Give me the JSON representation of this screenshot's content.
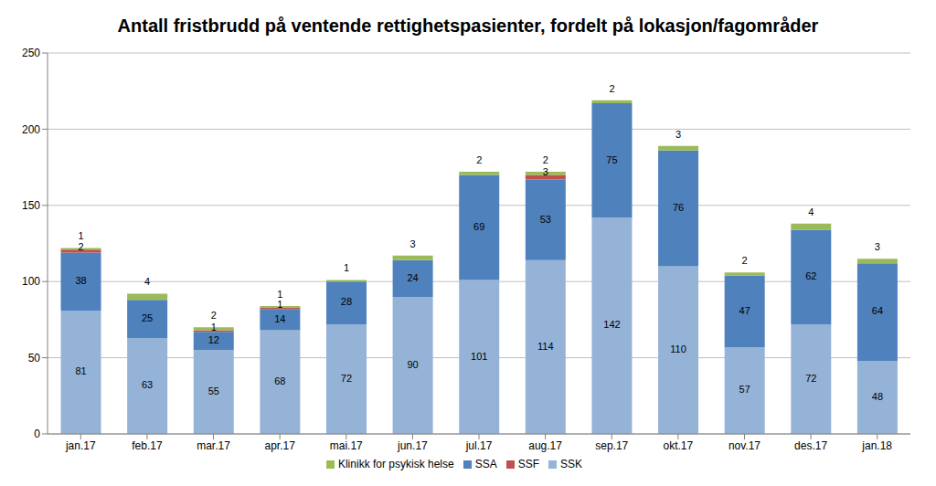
{
  "chart_data": {
    "type": "bar",
    "title": "Antall fristbrudd på ventende rettighetspasienter, fordelt på lokasjon/fagområder",
    "categories": [
      "jan.17",
      "feb.17",
      "mar.17",
      "apr.17",
      "mai.17",
      "jun.17",
      "jul.17",
      "aug.17",
      "sep.17",
      "okt.17",
      "nov.17",
      "des.17",
      "jan.18"
    ],
    "series": [
      {
        "name": "SSK",
        "color": "#95b3d7",
        "values": [
          81,
          63,
          55,
          68,
          72,
          90,
          101,
          114,
          142,
          110,
          57,
          72,
          48
        ]
      },
      {
        "name": "SSA",
        "color": "#4f81bd",
        "values": [
          38,
          25,
          12,
          14,
          28,
          24,
          69,
          53,
          75,
          76,
          47,
          62,
          64
        ]
      },
      {
        "name": "SSF",
        "color": "#c0504d",
        "values": [
          2,
          0,
          1,
          1,
          0,
          0,
          0,
          3,
          0,
          0,
          0,
          0,
          0
        ]
      },
      {
        "name": "Klinikk for psykisk helse",
        "color": "#9bbb59",
        "values": [
          1,
          4,
          2,
          1,
          1,
          3,
          2,
          2,
          2,
          3,
          2,
          4,
          3
        ]
      }
    ],
    "ylim": [
      0,
      250
    ],
    "yticks": [
      0,
      50,
      100,
      150,
      200,
      250
    ],
    "grid": true,
    "stacked": true,
    "data_labels": true,
    "legend": "bottom"
  }
}
